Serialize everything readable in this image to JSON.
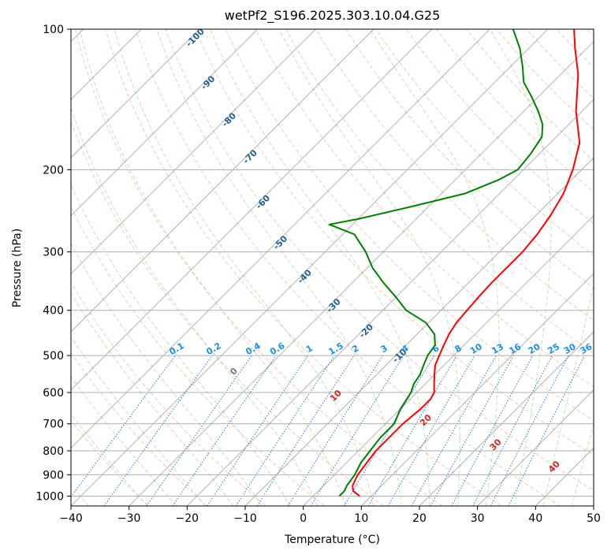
{
  "chart_data": {
    "type": "line",
    "chart_kind": "skew-t log-p diagram",
    "title": "wetPf2_S196.2025.303.10.04.G25",
    "xlabel": "Temperature (°C)",
    "ylabel": "Pressure (hPa)",
    "xlim": [
      -40,
      50
    ],
    "ylim": [
      1050,
      100
    ],
    "y_scale": "log",
    "grid": true,
    "x_ticks": [
      -40,
      -30,
      -20,
      -10,
      0,
      10,
      20,
      30,
      40,
      50
    ],
    "y_ticks": [
      100,
      200,
      300,
      400,
      500,
      600,
      700,
      800,
      900,
      1000
    ],
    "series": [
      {
        "color": "#ff0000",
        "line": "solid",
        "points": [
          [
            1000,
            8.0
          ],
          [
            975,
            6.0
          ],
          [
            950,
            5.0
          ],
          [
            900,
            4.0
          ],
          [
            850,
            3.5
          ],
          [
            800,
            3.0
          ],
          [
            750,
            3.0
          ],
          [
            700,
            3.0
          ],
          [
            650,
            3.5
          ],
          [
            620,
            3.5
          ],
          [
            600,
            3.0
          ],
          [
            575,
            1.5
          ],
          [
            550,
            0.0
          ],
          [
            525,
            -1.5
          ],
          [
            500,
            -2.5
          ],
          [
            475,
            -3.5
          ],
          [
            450,
            -4.5
          ],
          [
            425,
            -5.2
          ],
          [
            400,
            -5.5
          ],
          [
            375,
            -5.8
          ],
          [
            350,
            -6.0
          ],
          [
            325,
            -6.0
          ],
          [
            300,
            -6.0
          ],
          [
            275,
            -6.5
          ],
          [
            250,
            -7.5
          ],
          [
            225,
            -9.0
          ],
          [
            200,
            -11.5
          ],
          [
            175,
            -15.0
          ],
          [
            150,
            -21.0
          ],
          [
            125,
            -27.0
          ],
          [
            110,
            -32.0
          ],
          [
            100,
            -35.5
          ]
        ]
      },
      {
        "color": "#008000",
        "line": "solid",
        "points": [
          [
            1000,
            4.5
          ],
          [
            975,
            4.5
          ],
          [
            950,
            4.0
          ],
          [
            900,
            3.5
          ],
          [
            850,
            2.5
          ],
          [
            800,
            2.0
          ],
          [
            750,
            1.5
          ],
          [
            700,
            1.5
          ],
          [
            650,
            0.0
          ],
          [
            600,
            -1.0
          ],
          [
            575,
            -2.0
          ],
          [
            550,
            -2.5
          ],
          [
            525,
            -3.5
          ],
          [
            500,
            -4.5
          ],
          [
            475,
            -5.0
          ],
          [
            450,
            -7.0
          ],
          [
            425,
            -10.5
          ],
          [
            400,
            -16.0
          ],
          [
            375,
            -20.0
          ],
          [
            350,
            -24.5
          ],
          [
            325,
            -29.0
          ],
          [
            300,
            -33.0
          ],
          [
            275,
            -38.0
          ],
          [
            262,
            -44.0
          ],
          [
            255,
            -40.0
          ],
          [
            240,
            -33.0
          ],
          [
            225,
            -26.0
          ],
          [
            210,
            -22.5
          ],
          [
            200,
            -21.0
          ],
          [
            185,
            -21.5
          ],
          [
            170,
            -22.5
          ],
          [
            160,
            -24.5
          ],
          [
            150,
            -27.5
          ],
          [
            140,
            -31.0
          ],
          [
            130,
            -35.0
          ],
          [
            120,
            -38.0
          ],
          [
            110,
            -41.5
          ],
          [
            100,
            -46.0
          ]
        ]
      }
    ],
    "dry_adiabat_labels": [
      "-100",
      "-90",
      "-80",
      "-70",
      "-60",
      "-50",
      "-40",
      "-30",
      "-20",
      "-10"
    ],
    "mixing_ratio_labels": [
      "0.1",
      "0.2",
      "0.4",
      "0.6",
      "1",
      "1.5",
      "2",
      "3",
      "4",
      "6",
      "8",
      "10",
      "13",
      "16",
      "20",
      "25",
      "30",
      "36"
    ],
    "moist_adiabat_labels": [
      "0",
      "10",
      "20",
      "30",
      "40"
    ],
    "colors": {
      "temperature": "#ff0000",
      "dewpoint": "#008000",
      "isotherms": "#808080",
      "isobars": "#b0b0b0",
      "dry_adiabats": "#f4a582",
      "moist_adiabats": "#a6d49f",
      "mixing_ratio": "#1f77e4",
      "dry_label": "#1f5f96",
      "mixing_label": "#1e8fe6",
      "moist_label_zero": "#7a7a7a",
      "moist_label": "#d62728"
    }
  }
}
